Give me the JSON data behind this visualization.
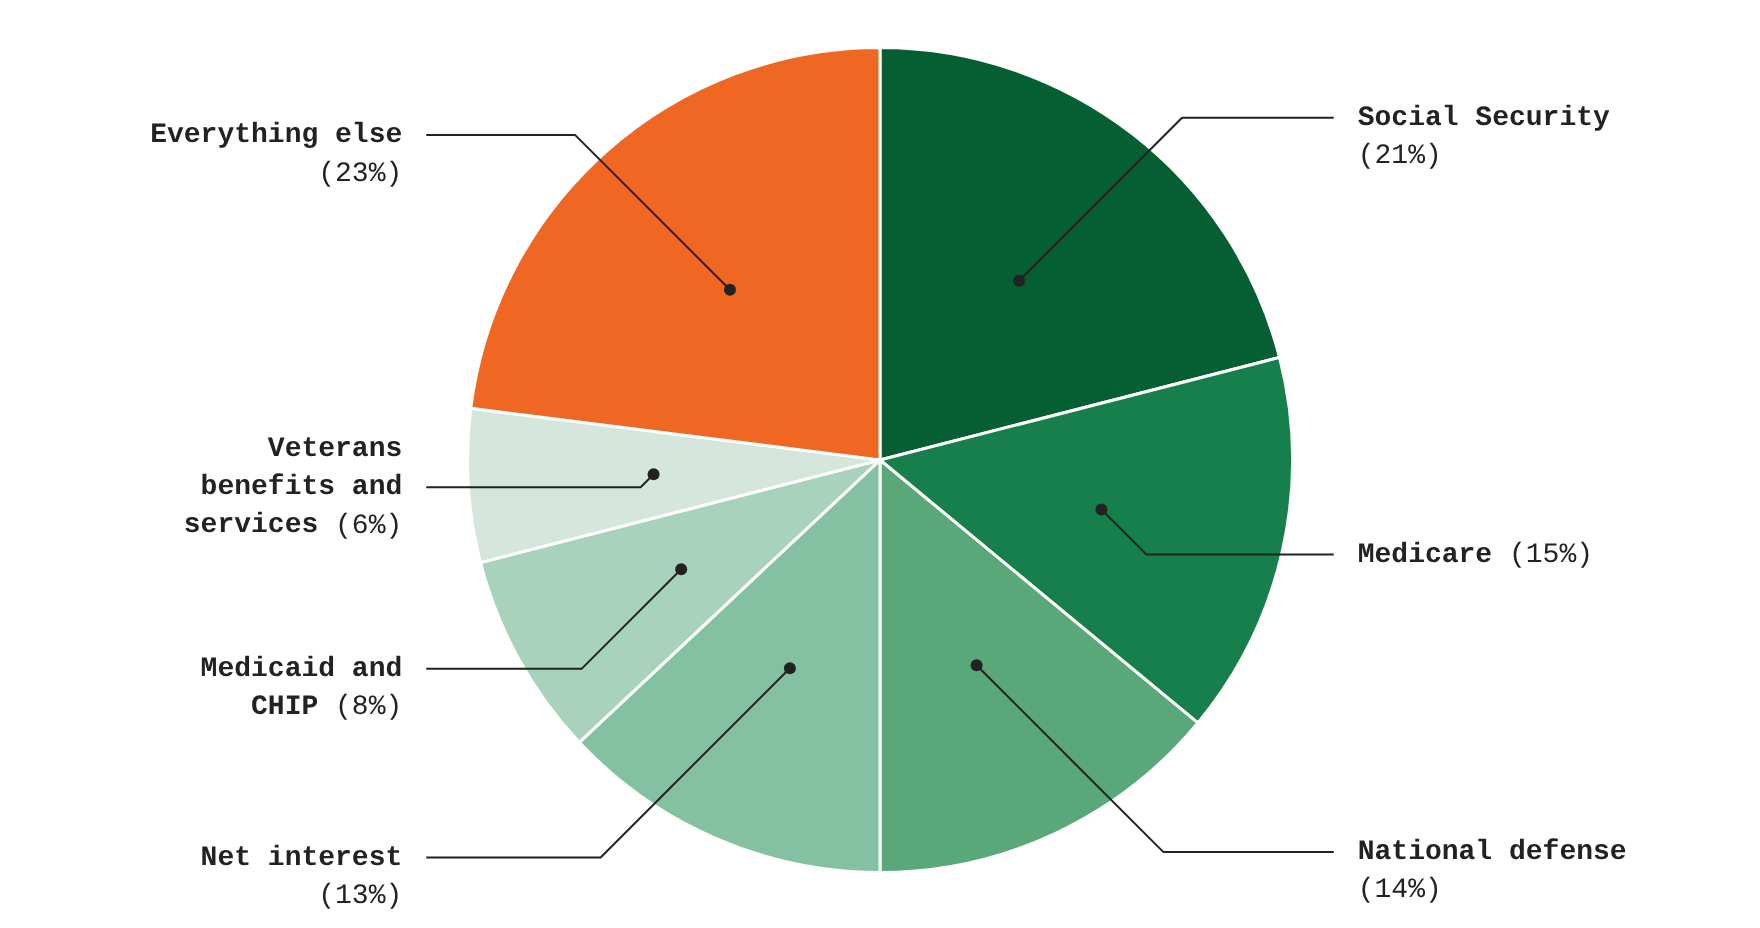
{
  "chart_data": {
    "type": "pie",
    "categories": [
      "Social Security",
      "Medicare",
      "National defense",
      "Net interest",
      "Medicaid and CHIP",
      "Veterans benefits and services",
      "Everything else"
    ],
    "values": [
      21,
      15,
      14,
      13,
      8,
      6,
      23
    ],
    "value_labels": [
      "(21%)",
      "(15%)",
      "(14%)",
      "(13%)",
      "(8%)",
      "(6%)",
      "(23%)"
    ],
    "colors": [
      "#065f33",
      "#167f4c",
      "#5aa87a",
      "#84c0a2",
      "#a9d2bd",
      "#d5e6dc",
      "#f06623"
    ],
    "legend": false
  }
}
